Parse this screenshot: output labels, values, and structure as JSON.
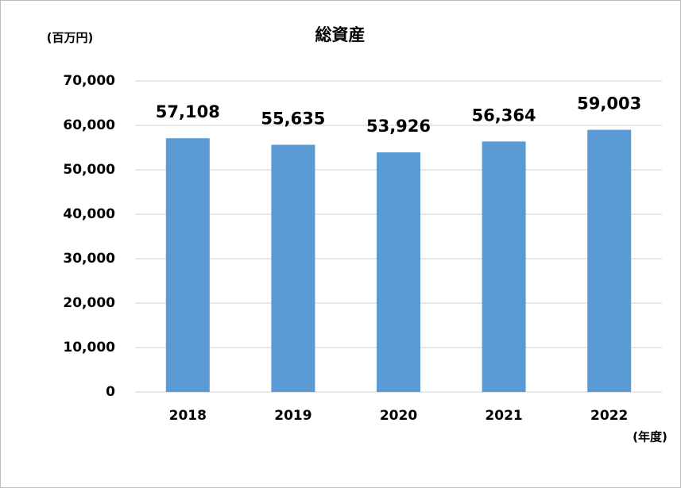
{
  "chart_data": {
    "type": "bar",
    "title": "総資産",
    "y_unit_label": "(百万円)",
    "x_unit_label": "(年度)",
    "categories": [
      "2018",
      "2019",
      "2020",
      "2021",
      "2022"
    ],
    "values": [
      57108,
      55635,
      53926,
      56364,
      59003
    ],
    "value_labels": [
      "57,108",
      "55,635",
      "53,926",
      "56,364",
      "59,003"
    ],
    "color": "#5b9bd5",
    "ylim": [
      0,
      70000
    ],
    "yticks": [
      0,
      {
        "value": 10000,
        "label": "10,000"
      },
      {
        "value": 20000,
        "label": "20,000"
      },
      {
        "value": 30000,
        "label": "30,000"
      },
      {
        "value": 40000,
        "label": "40,000"
      },
      {
        "value": 50000,
        "label": "50,000"
      },
      {
        "value": 60000,
        "label": "60,000"
      },
      {
        "value": 70000,
        "label": "70,000"
      }
    ],
    "grid": true
  }
}
